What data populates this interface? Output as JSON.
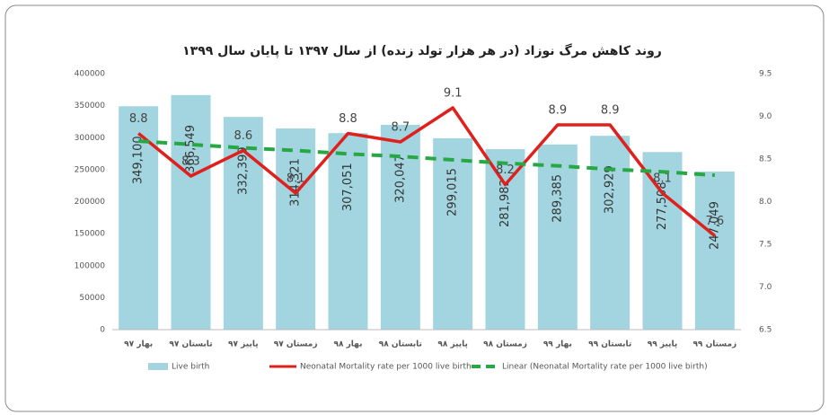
{
  "chart_data": {
    "type": "combo",
    "title": "روند کاهش مرگ نوزاد (در هر هزار تولد زنده) از سال ۱۳۹۷ تا پایان سال ۱۳۹۹",
    "categories": [
      "بهار ۹۷",
      "تابستان ۹۷",
      "پاییز ۹۷",
      "زمستان ۹۷",
      "بهار ۹۸",
      "تابستان ۹۸",
      "پاییز ۹۸",
      "زمستان ۹۸",
      "بهار ۹۹",
      "تابستان ۹۹",
      "پاییز ۹۹",
      "زمستان ۹۹"
    ],
    "series": [
      {
        "name": "Live birth",
        "type": "bar",
        "color": "#a3d5e0",
        "values": [
          349100,
          366549,
          332399,
          314321,
          307051,
          320047,
          299015,
          281982,
          289385,
          302929,
          277508,
          247049
        ],
        "value_labels": [
          "349,100",
          "366,549",
          "332,399",
          "314,321",
          "307,051",
          "320,047",
          "299,015",
          "281,982",
          "289,385",
          "302,929",
          "277,508",
          "247,049"
        ]
      },
      {
        "name": "Neonatal Mortality rate per 1000 live birth",
        "type": "line",
        "axis": "y2",
        "color": "#e0201c",
        "values": [
          8.8,
          8.3,
          8.6,
          8.1,
          8.8,
          8.7,
          9.1,
          8.2,
          8.9,
          8.9,
          8.1,
          7.6
        ]
      },
      {
        "name": "Linear (Neonatal Mortality rate per 1000 live birth)",
        "type": "trend",
        "axis": "y2",
        "color": "#27a844",
        "values": [
          8.71,
          8.67,
          8.63,
          8.6,
          8.56,
          8.53,
          8.49,
          8.45,
          8.42,
          8.38,
          8.35,
          8.31
        ]
      }
    ],
    "ylim": [
      0,
      400000
    ],
    "yticks": [
      0,
      50000,
      100000,
      150000,
      200000,
      250000,
      300000,
      350000,
      400000
    ],
    "y2lim": [
      6.5,
      9.5
    ],
    "y2ticks": [
      6.5,
      {
        "value": 7,
        "label": "7.0"
      },
      7.5,
      {
        "value": 8,
        "label": "8.0"
      },
      8.5,
      {
        "value": 9,
        "label": "9.0"
      },
      9.5
    ],
    "grid": false,
    "legend": "bottom"
  }
}
